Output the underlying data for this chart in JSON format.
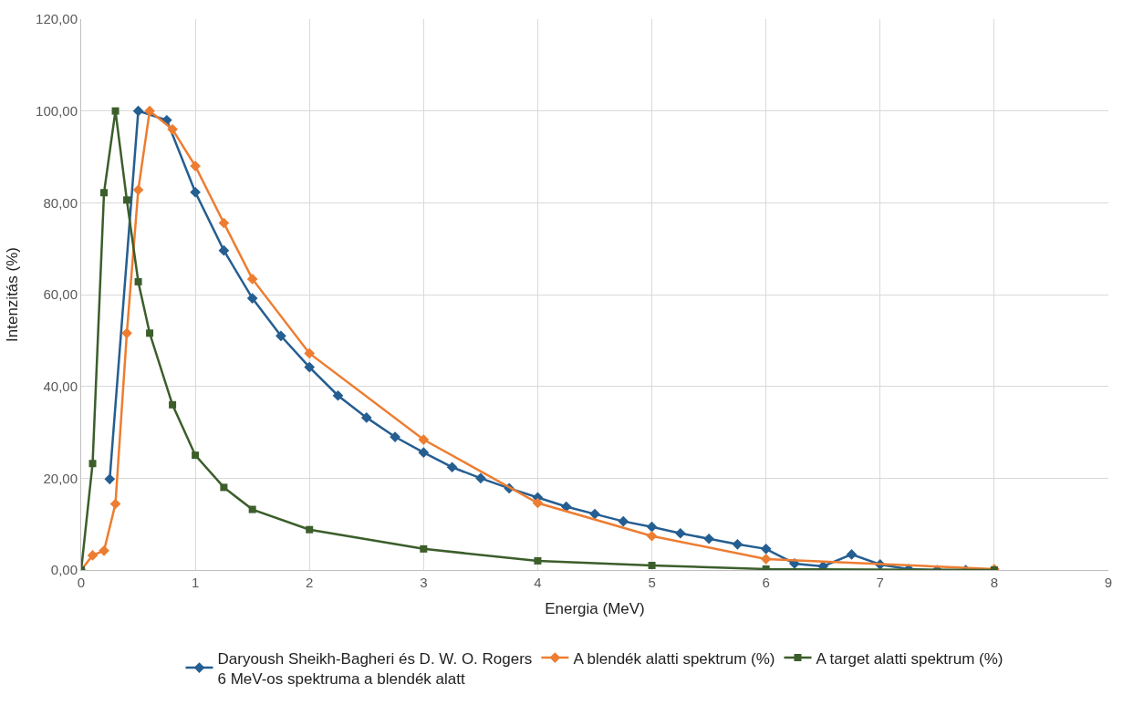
{
  "chart_data": {
    "type": "line",
    "xlabel": "Energia (MeV)",
    "ylabel": "Intenzitás (%)",
    "xlim": [
      0,
      9
    ],
    "xticks": [
      0,
      1,
      2,
      3,
      4,
      5,
      6,
      7,
      8,
      9
    ],
    "ylim": [
      0,
      120
    ],
    "yticks": [
      {
        "value": 0,
        "label": "0,00"
      },
      {
        "value": 20,
        "label": "20,00"
      },
      {
        "value": 40,
        "label": "40,00"
      },
      {
        "value": 60,
        "label": "60,00"
      },
      {
        "value": 80,
        "label": "80,00"
      },
      {
        "value": 100,
        "label": "100,00"
      },
      {
        "value": 120,
        "label": "120,00"
      }
    ],
    "grid": true,
    "legend": "bottom",
    "line_style": "solid",
    "series": [
      {
        "name": "Daryoush Sheikh-Bagheri és D. W. O. Rogers\n6 MeV-os spektruma a blendék alatt",
        "color": "#255e91",
        "marker": "diamond",
        "x": [
          0.25,
          0.5,
          0.75,
          1,
          1.25,
          1.5,
          1.75,
          2,
          2.25,
          2.5,
          2.75,
          3,
          3.25,
          3.5,
          3.75,
          4,
          4.25,
          4.5,
          4.75,
          5,
          5.25,
          5.5,
          5.75,
          6,
          6.25,
          6.5,
          6.75,
          7,
          7.25,
          7.5,
          7.75
        ],
        "values": [
          19.8,
          100,
          98,
          82.3,
          69.6,
          59.2,
          51,
          44.2,
          38,
          33.2,
          29,
          25.6,
          22.4,
          20,
          17.8,
          15.8,
          13.8,
          12.2,
          10.6,
          9.4,
          8,
          6.8,
          5.6,
          4.6,
          1.4,
          0.8,
          3.4,
          1.2,
          0.2,
          0,
          0
        ]
      },
      {
        "name": "A blendék alatti spektrum (%)",
        "color": "#ed7d31",
        "marker": "diamond",
        "x": [
          0,
          0.1,
          0.2,
          0.3,
          0.4,
          0.5,
          0.6,
          0.8,
          1,
          1.25,
          1.5,
          2,
          3,
          4,
          5,
          6,
          8
        ],
        "values": [
          0,
          3.2,
          4.2,
          14.4,
          51.6,
          82.8,
          100,
          96,
          88,
          75.6,
          63.4,
          47.2,
          28.4,
          14.6,
          7.4,
          2.4,
          0.2
        ]
      },
      {
        "name": "A target alatti spektrum (%)",
        "color": "#3b5e2b",
        "marker": "square",
        "x": [
          0,
          0.1,
          0.2,
          0.3,
          0.4,
          0.5,
          0.6,
          0.8,
          1,
          1.25,
          1.5,
          2,
          3,
          4,
          5,
          6,
          8
        ],
        "values": [
          0,
          23.2,
          82.2,
          100,
          80.6,
          62.8,
          51.6,
          36,
          25,
          18,
          13.2,
          8.8,
          4.6,
          2,
          1,
          0.2,
          0
        ]
      }
    ]
  }
}
